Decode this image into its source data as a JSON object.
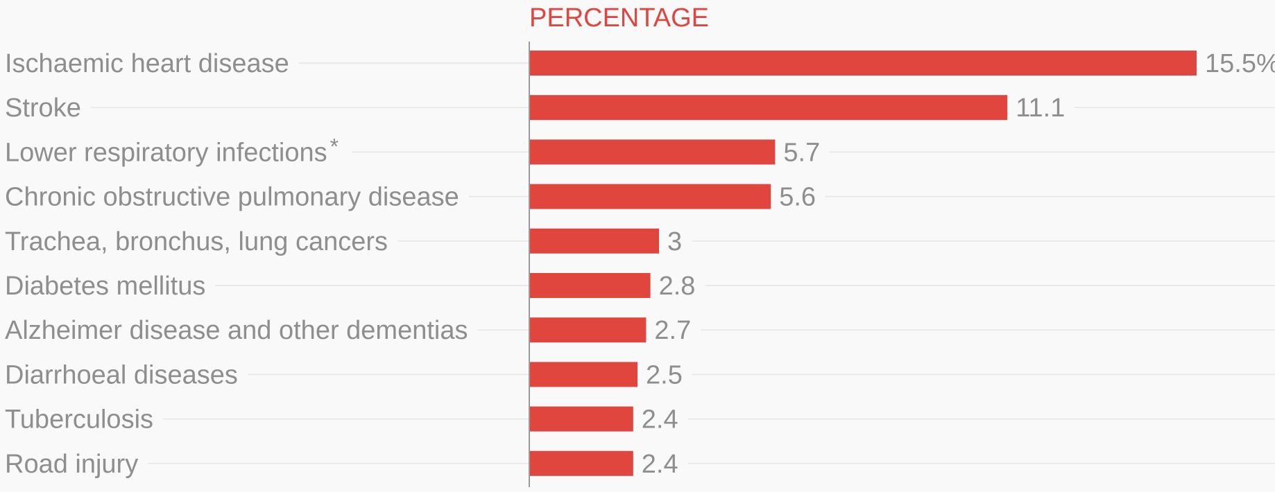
{
  "chart_data": {
    "type": "bar",
    "orientation": "horizontal",
    "title": "PERCENTAGE",
    "categories": [
      "Ischaemic heart disease",
      "Stroke",
      "Lower respiratory infections",
      "Chronic obstructive pulmonary disease",
      "Trachea, bronchus, lung cancers",
      "Diabetes mellitus",
      "Alzheimer disease and other dementias",
      "Diarrhoeal diseases",
      "Tuberculosis",
      "Road injury"
    ],
    "values": [
      15.5,
      11.1,
      5.7,
      5.6,
      3,
      2.8,
      2.7,
      2.5,
      2.4,
      2.4
    ],
    "value_labels": [
      "15.5%",
      "11.1",
      "5.7",
      "5.6",
      "3",
      "2.8",
      "2.7",
      "2.5",
      "2.4",
      "2.4"
    ],
    "annotations": [
      {
        "category": "Lower respiratory infections",
        "text": "*"
      }
    ],
    "xlim": [
      0,
      16.5
    ],
    "grid": true,
    "colors": {
      "bar": "#e0453e",
      "title": "#e0453e",
      "label": "#8e8e8e",
      "grid": "#e6e6e6",
      "axis": "#9a9a9a",
      "background": "#f9f9f9"
    }
  }
}
